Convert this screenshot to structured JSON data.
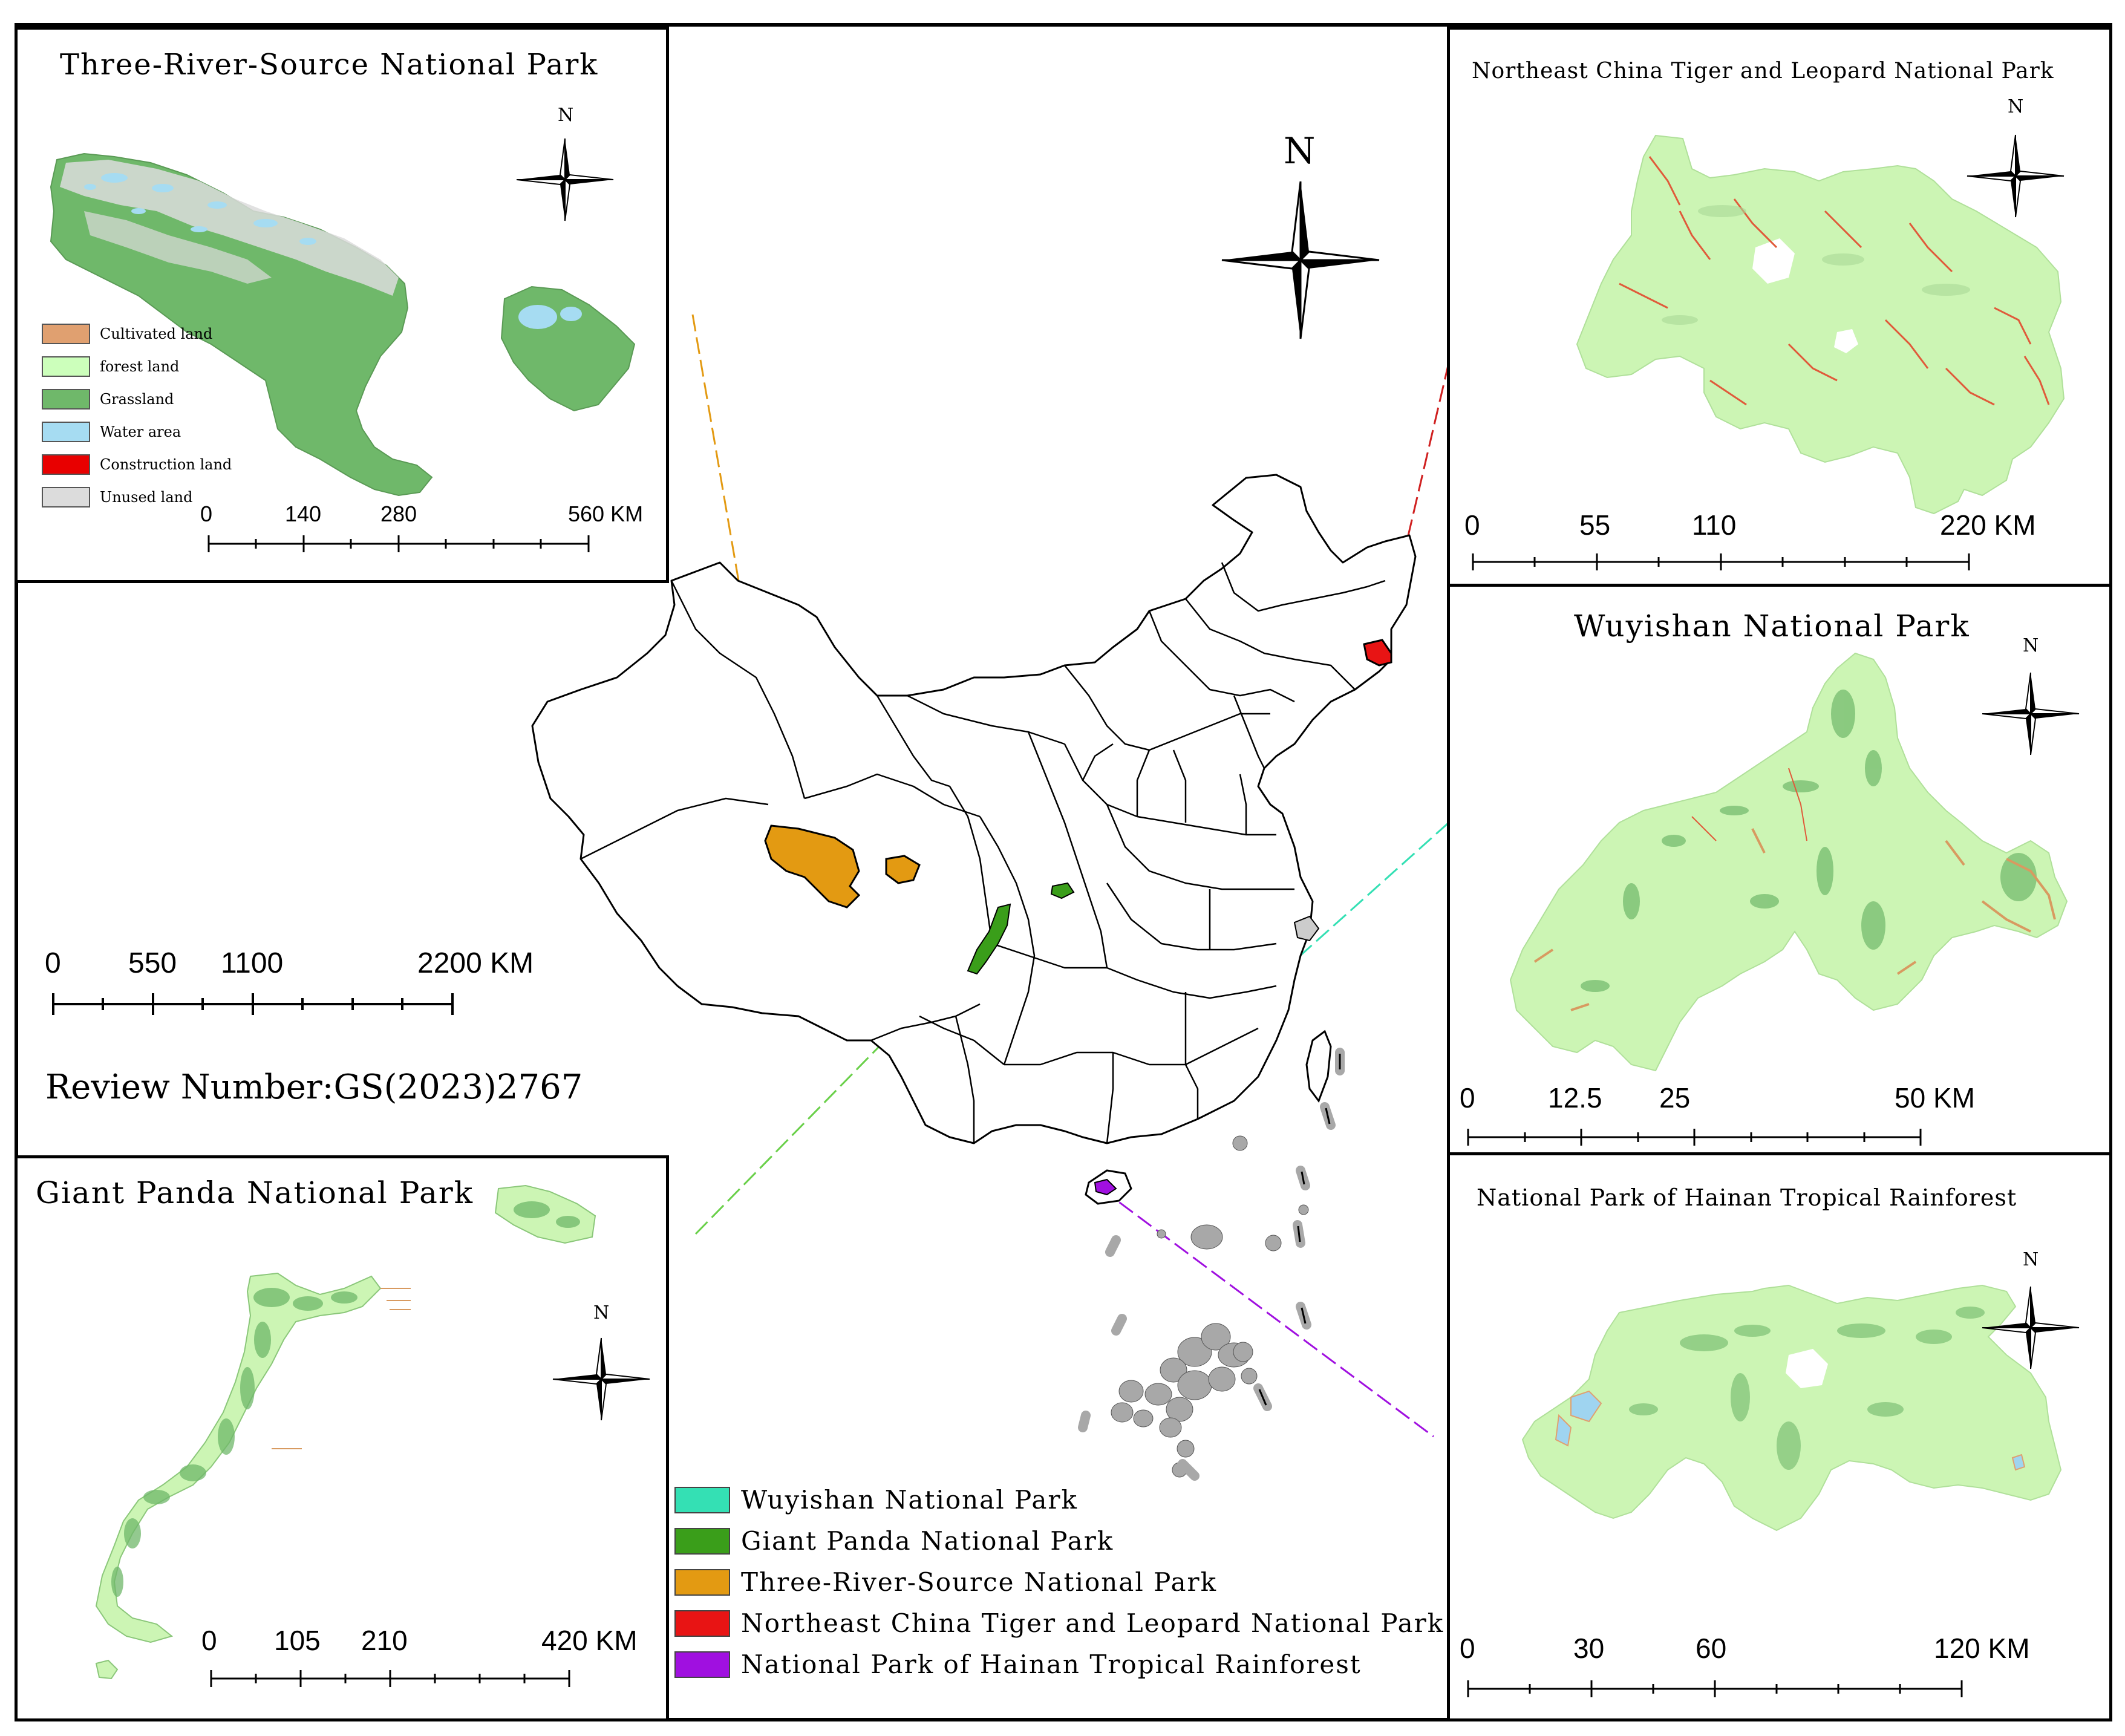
{
  "main_map": {
    "north_label": "N",
    "scale": {
      "labels": [
        "0",
        "550",
        "1100",
        "2200 KM"
      ]
    },
    "review_number": "Review Number:GS(2023)2767",
    "legend": [
      {
        "label": "Wuyishan National Park",
        "color": "#34e0b4"
      },
      {
        "label": "Giant Panda National Park",
        "color": "#3a9e1a"
      },
      {
        "label": "Three-River-Source National Park",
        "color": "#e39a12"
      },
      {
        "label": "Northeast China Tiger and Leopard National Park",
        "color": "#e81414"
      },
      {
        "label": "National Park of Hainan Tropical Rainforest",
        "color": "#a010e0"
      }
    ]
  },
  "inset_three_river": {
    "title": "Three-River-Source National Park",
    "north_label": "N",
    "scale": {
      "labels": [
        "0",
        "140",
        "280",
        "560 KM"
      ]
    },
    "landuse_legend": [
      {
        "label": "Cultivated land",
        "color": "#e0a070"
      },
      {
        "label": "forest land",
        "color": "#ccffbb"
      },
      {
        "label": "Grassland",
        "color": "#6fb86a"
      },
      {
        "label": "Water area",
        "color": "#a6dcf2"
      },
      {
        "label": "Construction land",
        "color": "#e80000"
      },
      {
        "label": "Unused land",
        "color": "#dcdcdc"
      }
    ]
  },
  "inset_tiger_leopard": {
    "title": "Northeast China Tiger and Leopard National Park",
    "north_label": "N",
    "scale": {
      "labels": [
        "0",
        "55",
        "110",
        "220 KM"
      ]
    }
  },
  "inset_wuyishan": {
    "title": "Wuyishan National Park",
    "north_label": "N",
    "scale": {
      "labels": [
        "0",
        "12.5",
        "25",
        "50 KM"
      ]
    }
  },
  "inset_hainan": {
    "title": "National Park of Hainan Tropical Rainforest",
    "north_label": "N",
    "scale": {
      "labels": [
        "0",
        "30",
        "60",
        "120 KM"
      ]
    }
  },
  "inset_giant_panda": {
    "title": "Giant Panda National Park",
    "north_label": "N",
    "scale": {
      "labels": [
        "0",
        "105",
        "210",
        "420 KM"
      ]
    }
  },
  "colors": {
    "forest": "#ccf5b4",
    "grass": "#6fb86a",
    "unused": "#dcdcdc",
    "water": "#a6dcf2",
    "construction": "#e04020",
    "cultivated": "#d89a60",
    "islands": "#a8a8a8"
  }
}
